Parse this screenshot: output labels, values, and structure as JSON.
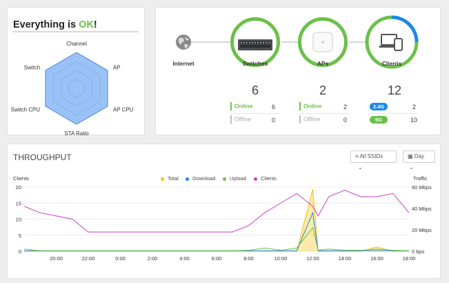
{
  "health": {
    "title_prefix": "Everything is ",
    "title_ok": "OK",
    "title_suffix": "!",
    "radar_axes": [
      "Channel",
      "AP",
      "AP CPU",
      "STA Ratio",
      "Switch CPU",
      "Switch"
    ],
    "radar_color": "#8ab7f5"
  },
  "topology": {
    "internet_label": "Internet",
    "switches": {
      "label": "Switches",
      "count": "6",
      "online_label": "Online",
      "online_value": "6",
      "offline_label": "Offline",
      "offline_value": "0"
    },
    "aps": {
      "label": "APs",
      "count": "2",
      "online_label": "Online",
      "online_value": "2",
      "offline_label": "Offline",
      "offline_value": "0"
    },
    "clients": {
      "label": "Clients",
      "count": "12",
      "band_24_label": "2.4G",
      "band_24_value": "2",
      "band_5_label": "5G",
      "band_5_value": "10"
    },
    "colors": {
      "ok": "#6cc04a",
      "blue": "#1e88e5",
      "offline": "#bdbdbd"
    }
  },
  "throughput": {
    "title": "THROUGHPUT",
    "ssid_button": "All SSIDs",
    "range_button": "Day",
    "left_axis_title": "Clients",
    "right_axis_title": "Traffic",
    "left_ticks": [
      "20",
      "15",
      "10",
      "5",
      "0"
    ],
    "right_ticks": [
      "60 Mbps",
      "40 Mbps",
      "20 Mbps",
      "0 bps"
    ],
    "x_ticks": [
      "20:00",
      "22:00",
      "0:00",
      "2:00",
      "4:00",
      "6:00",
      "8:00",
      "10:00",
      "12:00",
      "14:00",
      "16:00",
      "18:00"
    ],
    "legend": [
      {
        "name": "Total",
        "color": "#f4c20d"
      },
      {
        "name": "Download",
        "color": "#1e88e5"
      },
      {
        "name": "Upload",
        "color": "#6cc04a"
      },
      {
        "name": "Clients",
        "color": "#c840c8"
      }
    ]
  },
  "chart_data": {
    "type": "line",
    "x": [
      "18:00",
      "19:00",
      "20:00",
      "21:00",
      "22:00",
      "23:00",
      "0:00",
      "1:00",
      "2:00",
      "3:00",
      "4:00",
      "5:00",
      "6:00",
      "7:00",
      "8:00",
      "9:00",
      "10:00",
      "11:00",
      "12:00",
      "12:20",
      "13:00",
      "14:00",
      "15:00",
      "16:00",
      "17:00",
      "18:00"
    ],
    "series": [
      {
        "name": "Clients",
        "values": [
          14,
          12,
          11,
          10,
          6,
          6,
          6,
          6,
          6,
          6,
          6,
          6,
          6,
          6,
          8,
          12,
          15,
          18,
          14,
          11,
          17,
          19,
          17,
          17,
          18,
          12
        ]
      },
      {
        "name": "Total",
        "values": [
          0,
          0,
          0,
          0,
          0,
          0,
          0,
          0,
          0,
          0,
          0,
          0,
          0,
          0,
          0,
          0,
          0,
          0,
          58,
          0,
          0,
          0,
          0,
          4,
          0,
          0
        ]
      },
      {
        "name": "Download",
        "values": [
          0.5,
          0.5,
          0.5,
          0.5,
          0.5,
          0.5,
          0.5,
          0.5,
          0.5,
          0.5,
          0.5,
          0.5,
          0.5,
          0.5,
          0.5,
          0.5,
          0.5,
          0.5,
          36,
          0.5,
          0.5,
          0.5,
          0.5,
          0.5,
          0.5,
          0.5
        ]
      },
      {
        "name": "Upload",
        "values": [
          2,
          0.5,
          0.5,
          0.5,
          0.5,
          0.5,
          0.5,
          0.5,
          0.5,
          0.5,
          0.5,
          0.5,
          0.5,
          0.5,
          1,
          3,
          1,
          3,
          22,
          1,
          2,
          1,
          1,
          2,
          1,
          0.5
        ]
      }
    ],
    "ylim_left": [
      0,
      20
    ],
    "ylim_right_mbps": [
      0,
      60
    ],
    "ylabel_left": "Clients",
    "ylabel_right": "Traffic",
    "grid": true,
    "legend_position": "top-center"
  }
}
